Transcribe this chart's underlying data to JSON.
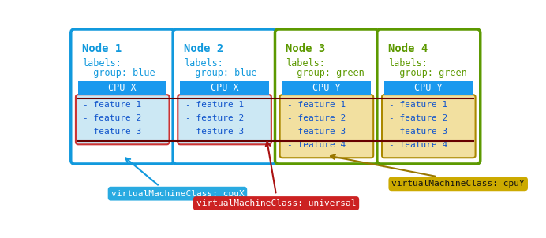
{
  "nodes": [
    {
      "title": "Node 1",
      "label1": "labels:",
      "label2": "  group: blue",
      "border": "#1199dd",
      "cpu": "CPU X",
      "features": [
        "- feature 1",
        "- feature 2",
        "- feature 3"
      ],
      "feat_bg": "#cce8f4",
      "feat_border": "#cc3333",
      "title_color": "#1199dd",
      "group": "blue",
      "cpu_bg": "#1a99ee"
    },
    {
      "title": "Node 2",
      "label1": "labels:",
      "label2": "  group: blue",
      "border": "#1199dd",
      "cpu": "CPU X",
      "features": [
        "- feature 1",
        "- feature 2",
        "- feature 3"
      ],
      "feat_bg": "#cce8f4",
      "feat_border": "#cc3333",
      "title_color": "#1199dd",
      "group": "blue",
      "cpu_bg": "#1a99ee"
    },
    {
      "title": "Node 3",
      "label1": "labels:",
      "label2": "  group: green",
      "border": "#5c9900",
      "cpu": "CPU Y",
      "features": [
        "- feature 1",
        "- feature 2",
        "- feature 3",
        "- feature 4"
      ],
      "feat_bg": "#f2e0a0",
      "feat_border": "#aa8800",
      "title_color": "#5c9900",
      "group": "green",
      "cpu_bg": "#1a99ee"
    },
    {
      "title": "Node 4",
      "label1": "labels:",
      "label2": "  group: green",
      "border": "#5c9900",
      "cpu": "CPU Y",
      "features": [
        "- feature 1",
        "- feature 2",
        "- feature 3",
        "- feature 4"
      ],
      "feat_bg": "#f2e0a0",
      "feat_border": "#aa8800",
      "title_color": "#5c9900",
      "group": "green",
      "cpu_bg": "#1a99ee"
    }
  ],
  "feat_text": "#1155cc",
  "cpu_text": "#ffffff",
  "universal_line_color": "#660000",
  "label_cpux": {
    "text": "virtualMachineClass: cpuX",
    "bg": "#29aae1",
    "color": "#ffffff"
  },
  "label_universal": {
    "text": "virtualMachineClass: universal",
    "bg": "#cc2222",
    "color": "#ffffff"
  },
  "label_cpuy": {
    "text": "virtualMachineClass: cpuY",
    "bg": "#ccaa00",
    "color": "#111111"
  },
  "arrow_cpux_color": "#1199dd",
  "arrow_universal_color": "#aa1111",
  "arrow_cpuy_color": "#997700"
}
